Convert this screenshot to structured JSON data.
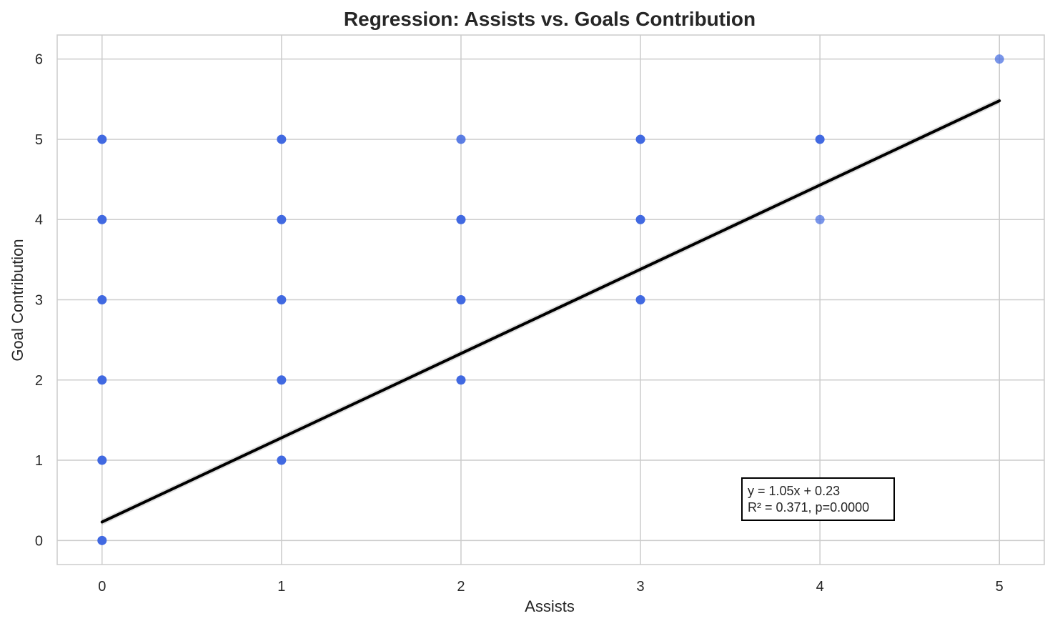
{
  "chart_data": {
    "type": "scatter",
    "title": "Regression: Assists vs. Goals Contribution",
    "xlabel": "Assists",
    "ylabel": "Goal Contribution",
    "xlim": [
      -0.25,
      5.25
    ],
    "ylim": [
      -0.3,
      6.3
    ],
    "xticks": [
      0,
      1,
      2,
      3,
      4,
      5
    ],
    "yticks": [
      0,
      1,
      2,
      3,
      4,
      5,
      6
    ],
    "grid": true,
    "points": {
      "color": "#4169E1",
      "data": [
        {
          "x": 0,
          "y": 0,
          "alpha": 1.0
        },
        {
          "x": 0,
          "y": 1,
          "alpha": 1.0
        },
        {
          "x": 0,
          "y": 2,
          "alpha": 1.0
        },
        {
          "x": 0,
          "y": 3,
          "alpha": 1.0
        },
        {
          "x": 0,
          "y": 4,
          "alpha": 1.0
        },
        {
          "x": 0,
          "y": 5,
          "alpha": 1.0
        },
        {
          "x": 1,
          "y": 1,
          "alpha": 1.0
        },
        {
          "x": 1,
          "y": 2,
          "alpha": 1.0
        },
        {
          "x": 1,
          "y": 3,
          "alpha": 1.0
        },
        {
          "x": 1,
          "y": 4,
          "alpha": 1.0
        },
        {
          "x": 1,
          "y": 5,
          "alpha": 1.0
        },
        {
          "x": 2,
          "y": 2,
          "alpha": 1.0
        },
        {
          "x": 2,
          "y": 3,
          "alpha": 1.0
        },
        {
          "x": 2,
          "y": 4,
          "alpha": 1.0
        },
        {
          "x": 2,
          "y": 5,
          "alpha": 0.85
        },
        {
          "x": 3,
          "y": 3,
          "alpha": 1.0
        },
        {
          "x": 3,
          "y": 4,
          "alpha": 1.0
        },
        {
          "x": 3,
          "y": 5,
          "alpha": 1.0
        },
        {
          "x": 4,
          "y": 4,
          "alpha": 0.7
        },
        {
          "x": 4,
          "y": 5,
          "alpha": 1.0
        },
        {
          "x": 5,
          "y": 6,
          "alpha": 0.7
        }
      ]
    },
    "regression": {
      "slope": 1.05,
      "intercept": 0.23,
      "x_range": [
        0,
        5
      ],
      "color": "#000000"
    },
    "annotation": {
      "lines": [
        "y = 1.05x + 0.23",
        "R² = 0.371, p=0.0000"
      ]
    }
  }
}
